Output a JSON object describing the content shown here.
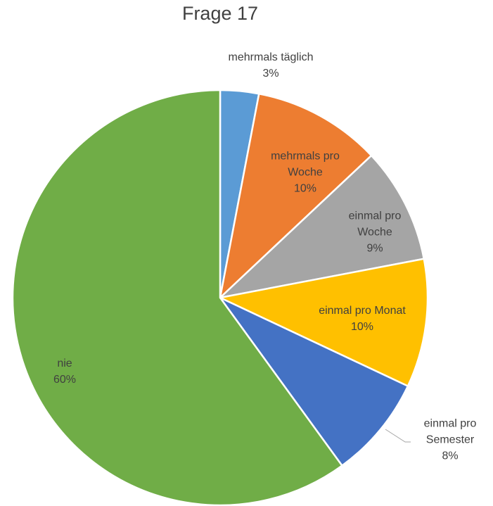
{
  "chart_data": {
    "type": "pie",
    "title": "Frage 17",
    "categories": [
      "mehrmals täglich",
      "mehrmals pro Woche",
      "einmal pro Woche",
      "einmal pro Monat",
      "einmal pro Semester",
      "nie"
    ],
    "values": [
      3,
      10,
      9,
      10,
      8,
      60
    ],
    "value_labels": [
      "3%",
      "10%",
      "9%",
      "10%",
      "8%",
      "60%"
    ],
    "colors": [
      "#5b9bd5",
      "#ed7d31",
      "#a5a5a5",
      "#ffc000",
      "#4472c4",
      "#70ad47"
    ]
  }
}
